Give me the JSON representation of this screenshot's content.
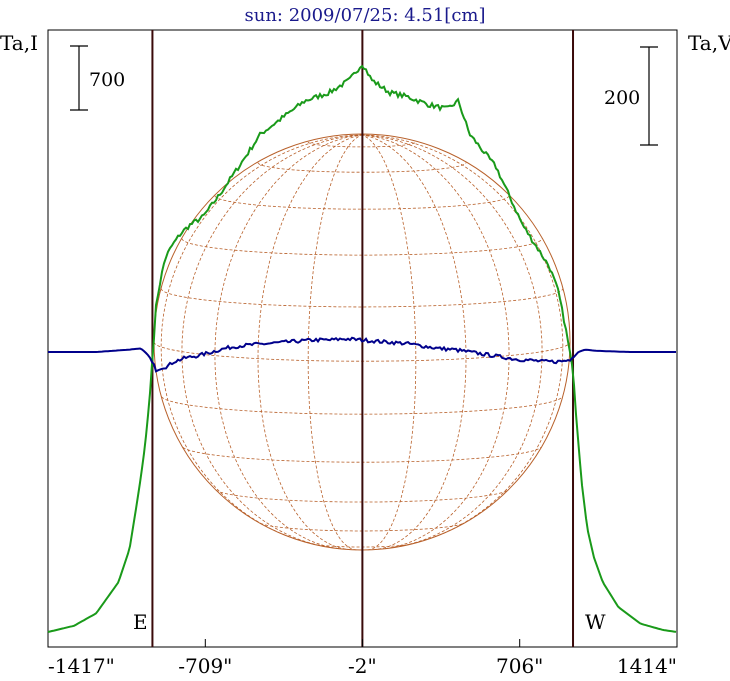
{
  "title": "sun: 2009/07/25: 4.51[cm]",
  "left_axis_label": "Ta,I",
  "right_axis_label": "Ta,V",
  "scale_left": "700",
  "scale_right": "200",
  "limb_labels": {
    "east": "E",
    "west": "W"
  },
  "colors": {
    "intensity": "#1a9a1a",
    "polarization": "#00008b",
    "grid": "#b8602a",
    "limb_lines": "#3a0a0a"
  },
  "chart_data": {
    "type": "line",
    "title": "sun: 2009/07/25: 4.51[cm]",
    "xlabel": "",
    "x_ticks": [
      "-1417\"",
      "-709\"",
      "-2\"",
      "706\"",
      "1414\""
    ],
    "x_tick_values": [
      -1417,
      -709,
      -2,
      706,
      1414
    ],
    "xlim": [
      -1417,
      1414
    ],
    "vertical_lines": [
      -947,
      -2,
      946
    ],
    "series": [
      {
        "name": "Ta,I",
        "x": [
          -1417,
          -1300,
          -1200,
          -1100,
          -1050,
          -1020,
          -1000,
          -980,
          -960,
          -947,
          -930,
          -910,
          -890,
          -860,
          -820,
          -780,
          -720,
          -650,
          -560,
          -460,
          -360,
          -260,
          -150,
          -60,
          -2,
          40,
          120,
          200,
          300,
          380,
          430,
          480,
          540,
          600,
          660,
          720,
          780,
          840,
          880,
          910,
          946,
          960,
          985,
          1010,
          1040,
          1080,
          1150,
          1250,
          1350,
          1414
        ],
        "y": [
          0.0,
          0.015,
          0.045,
          0.12,
          0.2,
          0.3,
          0.37,
          0.45,
          0.56,
          0.66,
          0.79,
          0.85,
          0.9,
          0.93,
          0.96,
          0.98,
          1.0,
          1.05,
          1.12,
          1.2,
          1.24,
          1.28,
          1.3,
          1.33,
          1.37,
          1.33,
          1.3,
          1.29,
          1.27,
          1.26,
          1.28,
          1.2,
          1.16,
          1.12,
          1.05,
          0.98,
          0.93,
          0.88,
          0.82,
          0.74,
          0.63,
          0.52,
          0.36,
          0.25,
          0.18,
          0.12,
          0.06,
          0.02,
          0.005,
          0.0
        ]
      },
      {
        "name": "Ta,V",
        "x": [
          -1417,
          -1200,
          -1050,
          -1000,
          -980,
          -960,
          -947,
          -930,
          -910,
          -880,
          -850,
          -800,
          -740,
          -680,
          -620,
          -560,
          -500,
          -430,
          -360,
          -290,
          -220,
          -150,
          -80,
          -2,
          60,
          130,
          200,
          270,
          340,
          410,
          480,
          550,
          620,
          690,
          760,
          820,
          880,
          920,
          946,
          970,
          1000,
          1050,
          1200,
          1414
        ],
        "y": [
          0.0,
          0.0,
          0.02,
          0.03,
          0.0,
          -0.04,
          -0.09,
          -0.15,
          -0.13,
          -0.12,
          -0.08,
          -0.05,
          -0.03,
          0.0,
          0.03,
          0.05,
          0.06,
          0.07,
          0.08,
          0.09,
          0.1,
          0.1,
          0.11,
          0.1,
          0.09,
          0.08,
          0.07,
          0.05,
          0.03,
          0.02,
          0.0,
          -0.02,
          -0.04,
          -0.06,
          -0.07,
          -0.08,
          -0.08,
          -0.07,
          -0.05,
          0.0,
          0.02,
          0.01,
          0.0,
          0.0
        ]
      }
    ]
  }
}
